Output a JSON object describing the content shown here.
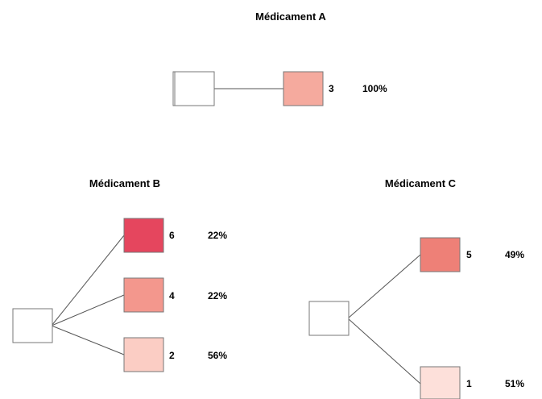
{
  "trees": [
    {
      "title": "Médicament A",
      "root_color": "#ffffff",
      "branches": [
        {
          "label": "3",
          "percent": "100%",
          "color": "#f5aa9e"
        }
      ]
    },
    {
      "title": "Médicament B",
      "root_color": "#ffffff",
      "branches": [
        {
          "label": "6",
          "percent": "22%",
          "color": "#e5465e"
        },
        {
          "label": "4",
          "percent": "22%",
          "color": "#f3978d"
        },
        {
          "label": "2",
          "percent": "56%",
          "color": "#fbcdc4"
        }
      ]
    },
    {
      "title": "Médicament C",
      "root_color": "#ffffff",
      "branches": [
        {
          "label": "5",
          "percent": "49%",
          "color": "#ee8077"
        },
        {
          "label": "1",
          "percent": "51%",
          "color": "#fde0da"
        }
      ]
    }
  ],
  "colors": {
    "line": "#555555",
    "border": "#777777",
    "text": "#222222"
  }
}
